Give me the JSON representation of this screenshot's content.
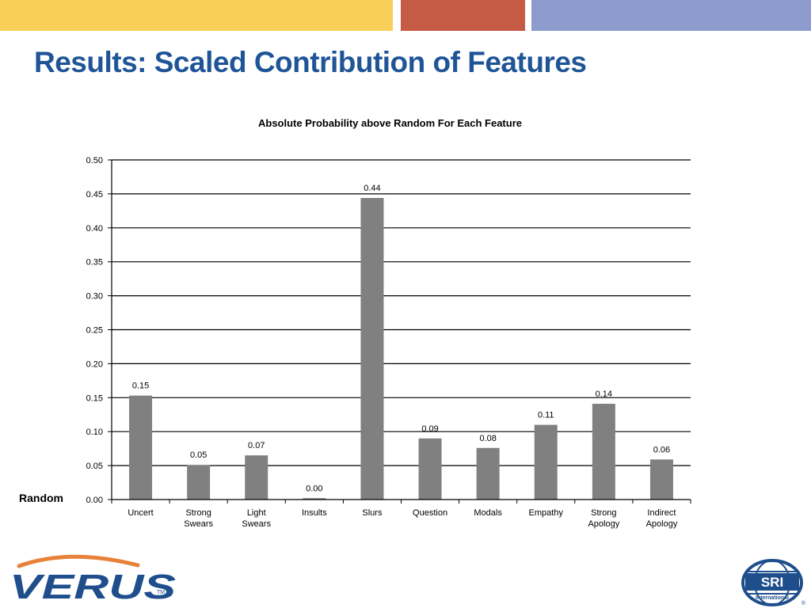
{
  "slide": {
    "title": "Results: Scaled Contribution of Features",
    "title_color": "#1f5597",
    "band_colors": [
      "#f9cf5a",
      "#c55a45",
      "#8e9ccd"
    ],
    "random_label": "Random"
  },
  "logos": {
    "left": "VERUS",
    "left_trademark": "TM",
    "right": "SRI",
    "right_sub": "International",
    "right_reg": "®"
  },
  "chart_data": {
    "type": "bar",
    "title": "Absolute Probability above Random For Each Feature",
    "categories": [
      [
        "Uncert"
      ],
      [
        "Strong",
        "Swears"
      ],
      [
        "Light",
        "Swears"
      ],
      [
        "Insults"
      ],
      [
        "Slurs"
      ],
      [
        "Question"
      ],
      [
        "Modals"
      ],
      [
        "Empathy"
      ],
      [
        "Strong",
        "Apology"
      ],
      [
        "Indirect",
        "Apology"
      ]
    ],
    "values": [
      0.153,
      0.051,
      0.065,
      0.002,
      0.444,
      0.09,
      0.076,
      0.11,
      0.141,
      0.059
    ],
    "data_labels": [
      "0.15",
      "0.05",
      "0.07",
      "0.00",
      "0.44",
      "0.09",
      "0.08",
      "0.11",
      "0.14",
      "0.06"
    ],
    "ylim": [
      0,
      0.5
    ],
    "y_ticks": [
      "0.00",
      "0.05",
      "0.10",
      "0.15",
      "0.20",
      "0.25",
      "0.30",
      "0.35",
      "0.40",
      "0.45",
      "0.50"
    ],
    "grid": true,
    "bar_color": "#808080",
    "xlabel": "",
    "ylabel": ""
  }
}
